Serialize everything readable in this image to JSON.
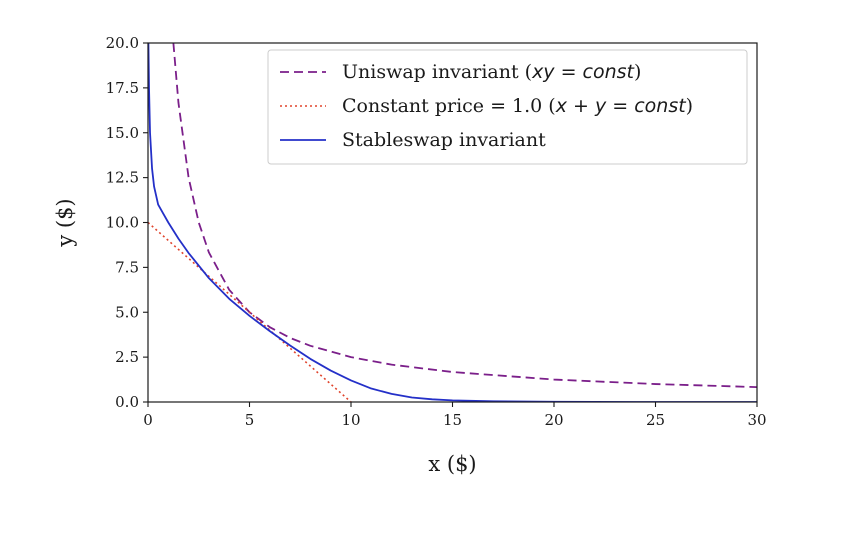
{
  "chart_data": {
    "type": "line",
    "title": "",
    "xlabel": "x ($)",
    "ylabel": "y ($)",
    "xlim": [
      0,
      30
    ],
    "ylim": [
      0,
      20
    ],
    "xticks": [
      "0",
      "5",
      "10",
      "15",
      "20",
      "25",
      "30"
    ],
    "yticks": [
      "0.0",
      "2.5",
      "5.0",
      "7.5",
      "10.0",
      "12.5",
      "15.0",
      "17.5",
      "20.0"
    ],
    "grid": false,
    "legend_position": "top-right",
    "series": [
      {
        "name": "Uniswap invariant (xy = const)",
        "legend_plain": "Uniswap invariant (",
        "legend_math": "xy = const",
        "legend_tail": ")",
        "style": "dashed",
        "color": "#7b1f8a",
        "x": [
          1.25,
          1.5,
          2,
          2.5,
          3,
          4,
          5,
          6,
          7,
          8,
          10,
          12,
          15,
          20,
          25,
          30
        ],
        "y": [
          20,
          16.67,
          12.5,
          10,
          8.33,
          6.25,
          5,
          4.17,
          3.57,
          3.13,
          2.5,
          2.08,
          1.67,
          1.25,
          1.0,
          0.83
        ]
      },
      {
        "name": "Constant price = 1.0 (x + y = const)",
        "legend_plain": "Constant price = 1.0 (",
        "legend_math": "x + y = const",
        "legend_tail": ")",
        "style": "dotted",
        "color": "#e0442c",
        "x": [
          0,
          10
        ],
        "y": [
          10,
          0
        ]
      },
      {
        "name": "Stableswap invariant",
        "legend_plain": "Stableswap invariant",
        "legend_math": "",
        "legend_tail": "",
        "style": "solid",
        "color": "#2430c8",
        "x": [
          0.02,
          0.05,
          0.1,
          0.2,
          0.3,
          0.5,
          0.75,
          1,
          1.5,
          2,
          3,
          4,
          5,
          6,
          7,
          8,
          9,
          10,
          11,
          12,
          13,
          14,
          15,
          17,
          20,
          25,
          30
        ],
        "y": [
          20,
          17.5,
          15,
          13,
          12,
          11,
          10.5,
          10,
          9.1,
          8.3,
          6.9,
          5.75,
          4.8,
          3.95,
          3.15,
          2.4,
          1.75,
          1.2,
          0.75,
          0.45,
          0.25,
          0.15,
          0.09,
          0.04,
          0.01,
          0.0,
          0.0
        ]
      }
    ]
  }
}
